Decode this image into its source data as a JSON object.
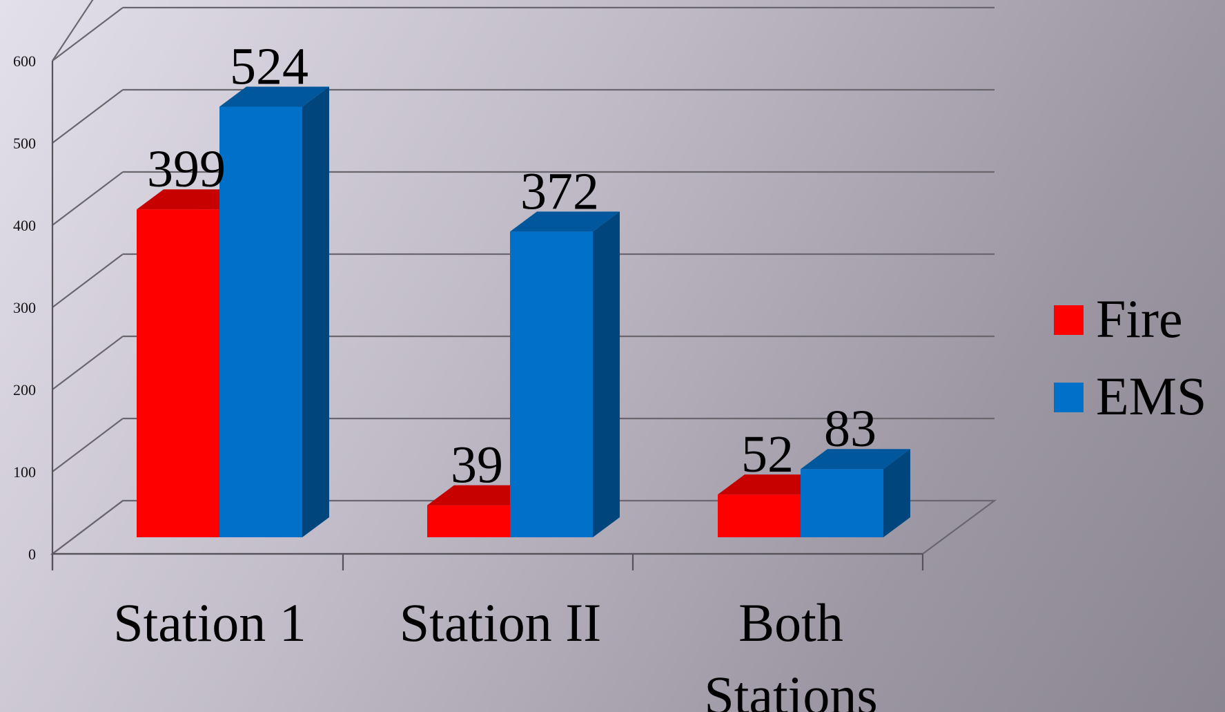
{
  "chart_data": {
    "type": "bar",
    "categories": [
      "Station 1",
      "Station II",
      "Both Stations"
    ],
    "series": [
      {
        "name": "Fire",
        "values": [
          399,
          39,
          52
        ],
        "color": "#ff0000"
      },
      {
        "name": "EMS",
        "values": [
          524,
          372,
          83
        ],
        "color": "#0070c8"
      }
    ],
    "ylim": [
      0,
      600
    ],
    "yticks": [
      "0",
      "100",
      "200",
      "300",
      "400",
      "500",
      "600"
    ],
    "grid": true,
    "legend": "right",
    "style": "3d-column"
  }
}
